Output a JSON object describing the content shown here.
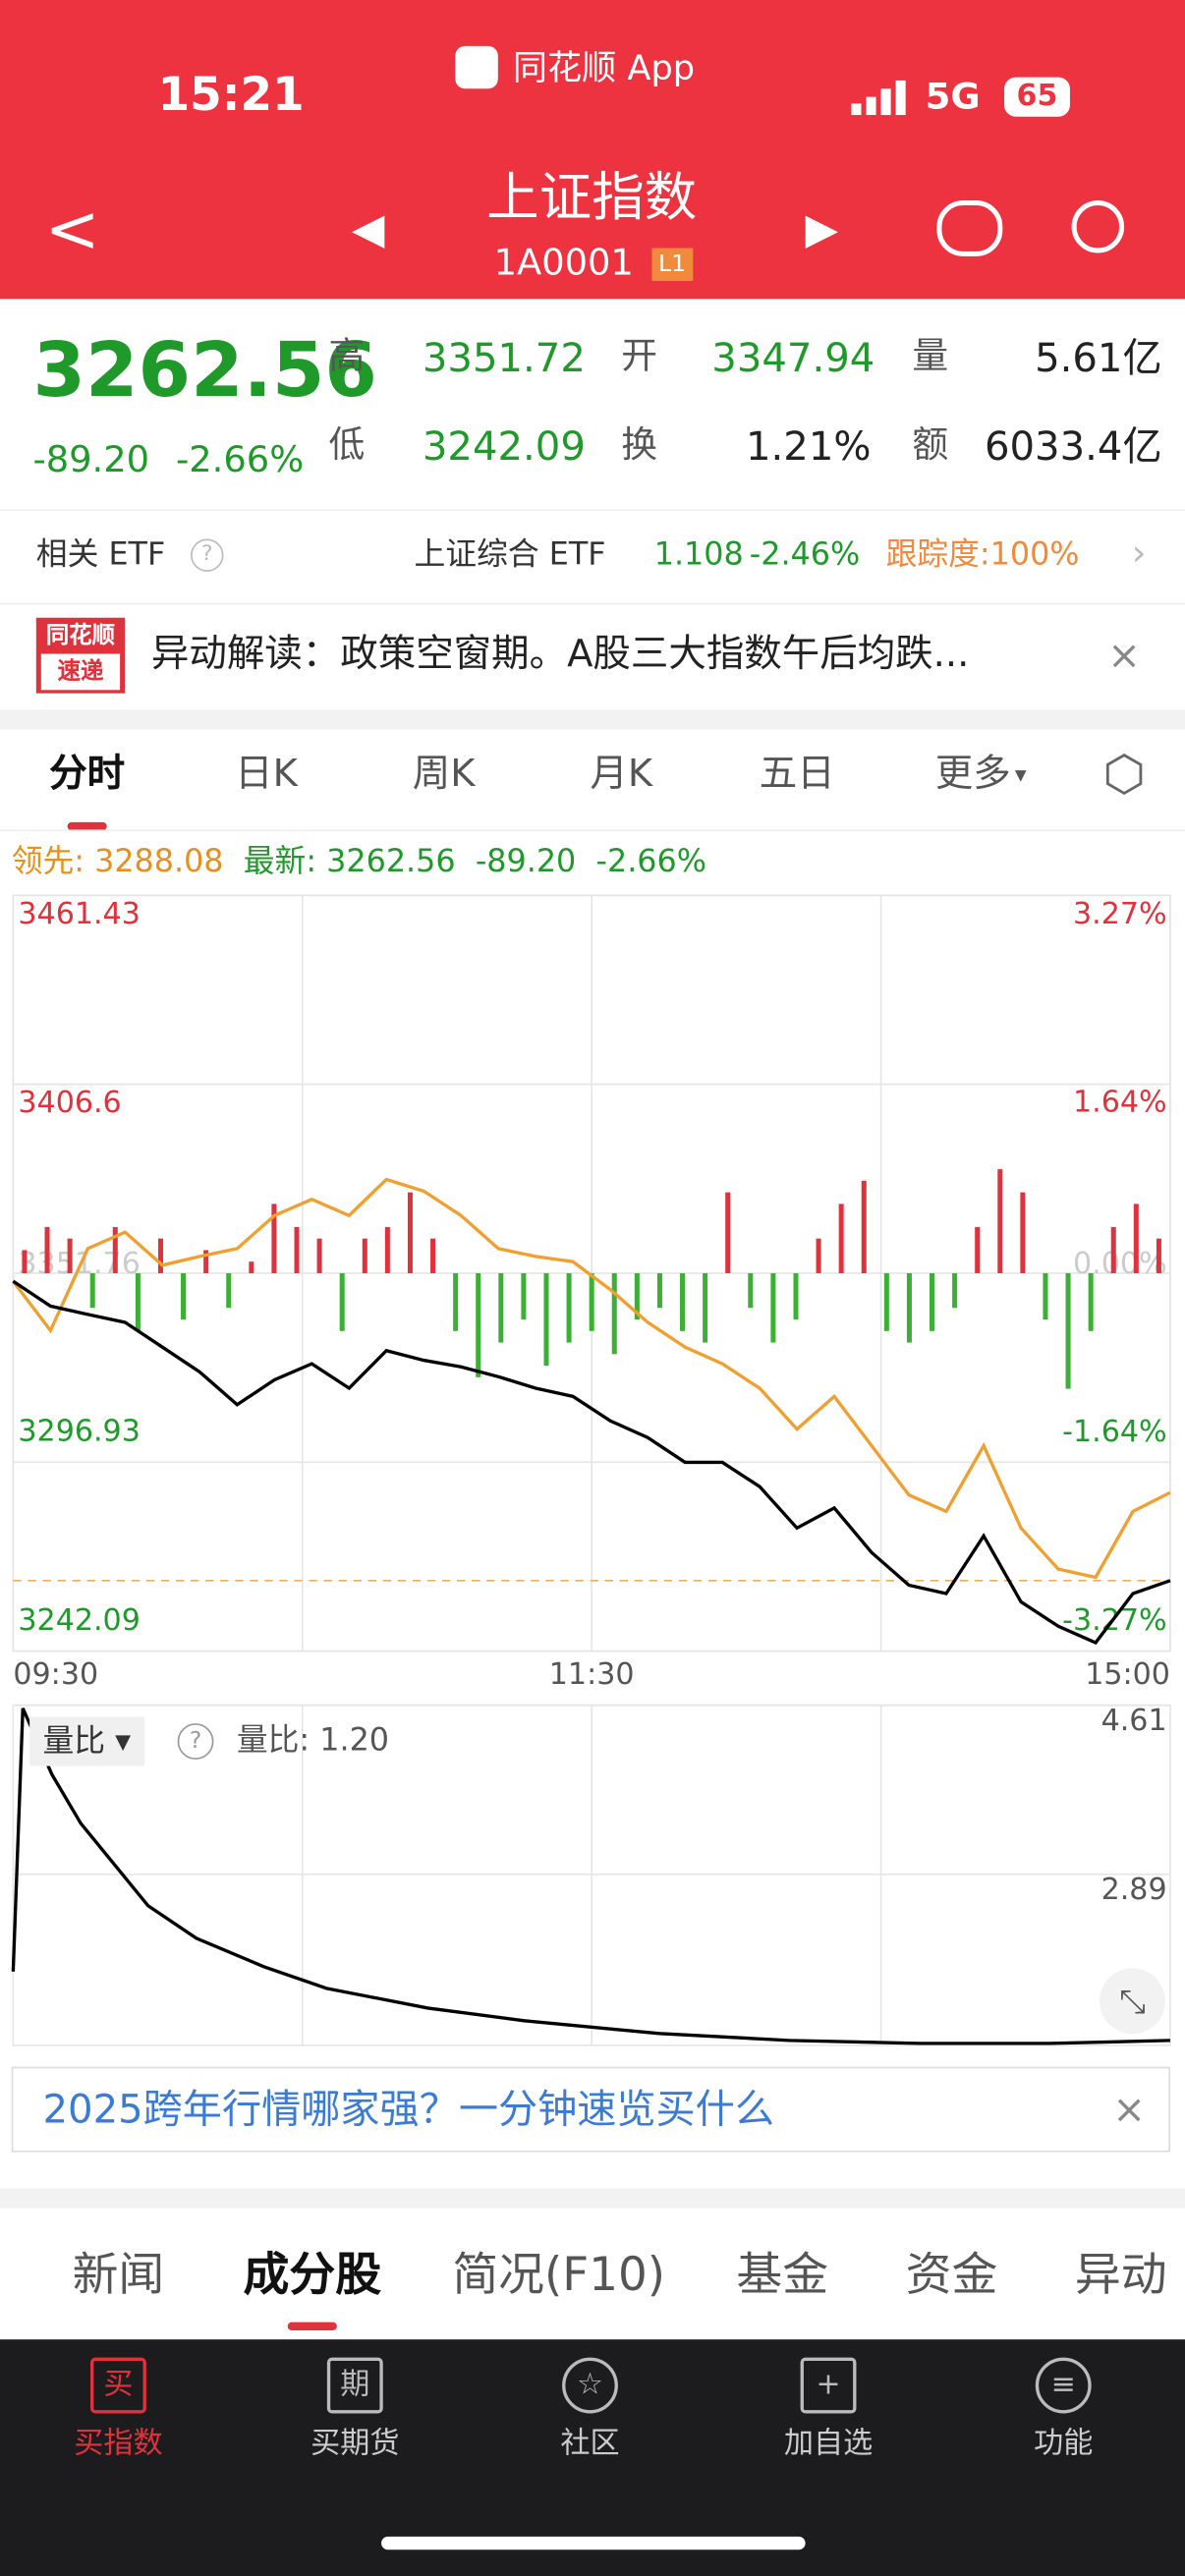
{
  "status": {
    "time": "15:21",
    "app": "同花顺 App",
    "network": "5G",
    "battery": "65"
  },
  "header": {
    "title": "上证指数",
    "code": "1A0001",
    "badge": "L1"
  },
  "quote": {
    "price": "3262.56",
    "change": "-89.20",
    "pct": "-2.66%",
    "fields": [
      {
        "label": "高",
        "value": "3351.72"
      },
      {
        "label": "开",
        "value": "3347.94"
      },
      {
        "label": "量",
        "value": "5.61亿"
      },
      {
        "label": "低",
        "value": "3242.09"
      },
      {
        "label": "换",
        "value": "1.21%"
      },
      {
        "label": "额",
        "value": "6033.4亿"
      }
    ]
  },
  "etf": {
    "label": "相关 ETF",
    "name": "上证综合 ETF",
    "price": "1.108",
    "pct": "-2.46%",
    "track": "跟踪度:100%"
  },
  "news": {
    "badge_top": "同花顺",
    "badge_bottom": "速递",
    "text": "异动解读：政策空窗期。A股三大指数午后均跌..."
  },
  "tabs": [
    "分时",
    "日K",
    "周K",
    "月K",
    "五日",
    "更多"
  ],
  "chart_data": [
    {
      "type": "line",
      "lead_label": "领先:",
      "lead": 3288.08,
      "latest_label": "最新:",
      "latest": 3262.56,
      "change": "-89.20",
      "pct": "-2.66%",
      "xlim": [
        0,
        240
      ],
      "xticks": [
        {
          "value": 0,
          "label": "09:30"
        },
        {
          "value": 120,
          "label": "11:30"
        },
        {
          "value": 240,
          "label": "15:00"
        }
      ],
      "ylim": [
        3242.09,
        3461.43
      ],
      "yticks": [
        3461.43,
        3406.6,
        3351.76,
        3296.93,
        3242.09
      ],
      "y2lim": [
        -3.27,
        3.27
      ],
      "y2ticks": [
        {
          "value": 3.27,
          "label": "3.27%"
        },
        {
          "value": 1.64,
          "label": "1.64%"
        },
        {
          "value": 0,
          "label": "0.00%"
        },
        {
          "value": -1.64,
          "label": "-1.64%"
        },
        {
          "value": -3.27,
          "label": "-3.27%"
        }
      ],
      "series": [
        {
          "color": "#f0a030",
          "values": [
            3349.4,
            3335.1,
            3358.9,
            3363.7,
            3354.1,
            3356.6,
            3358.9,
            3368.5,
            3373.2,
            3368.5,
            3379.0,
            3375.6,
            3368.5,
            3358.9,
            3356.6,
            3355.1,
            3347.0,
            3337.5,
            3330.3,
            3325.5,
            3318.4,
            3306.5,
            3316.0,
            3301.7,
            3287.4,
            3282.6,
            3301.7,
            3277.8,
            3265.9,
            3263.5,
            3282.6,
            3288.08
          ]
        },
        {
          "color": "#000000",
          "values": [
            3349.4,
            3342.2,
            3339.8,
            3337.5,
            3330.3,
            3323.1,
            3313.6,
            3320.8,
            3325.5,
            3318.4,
            3329.3,
            3326.5,
            3324.6,
            3321.7,
            3318.4,
            3316.0,
            3308.9,
            3304.1,
            3296.9,
            3296.9,
            3289.8,
            3277.8,
            3283.6,
            3270.7,
            3261.2,
            3258.8,
            3275.5,
            3256.4,
            3249.3,
            3244.5,
            3258.8,
            3262.56
          ]
        }
      ],
      "bars": {
        "axis": "y2",
        "up_color": "#e0323c",
        "down_color": "#3cb034",
        "values": [
          0.2,
          0.4,
          0.3,
          -0.3,
          0.4,
          -0.5,
          0.3,
          -0.4,
          0.2,
          -0.3,
          0.1,
          0.6,
          0.4,
          0.3,
          -0.5,
          0.3,
          0.4,
          0.7,
          0.3,
          -0.5,
          -0.9,
          -0.6,
          -0.4,
          -0.8,
          -0.6,
          -0.5,
          -0.7,
          -0.4,
          -0.3,
          -0.5,
          -0.6,
          0.7,
          -0.3,
          -0.6,
          -0.4,
          0.3,
          0.6,
          0.8,
          -0.5,
          -0.6,
          -0.5,
          -0.3,
          0.4,
          0.9,
          0.7,
          -0.4,
          -1.0,
          -0.5,
          0.4,
          0.6,
          0.3
        ]
      }
    },
    {
      "type": "line",
      "title": "量比",
      "label": "量比:",
      "current": "1.20",
      "color": "#000000",
      "xlim": [
        0,
        240
      ],
      "ylim": [
        1.15,
        4.61
      ],
      "yticks": [
        4.61,
        2.89
      ],
      "x": [
        0,
        2,
        8,
        14,
        21,
        28,
        38,
        52,
        65,
        86,
        106,
        134,
        161,
        188,
        215,
        240
      ],
      "values": [
        1.9,
        4.58,
        3.91,
        3.41,
        2.99,
        2.57,
        2.24,
        1.95,
        1.73,
        1.53,
        1.4,
        1.27,
        1.2,
        1.17,
        1.17,
        1.2
      ]
    }
  ],
  "ad": {
    "text": "2025跨年行情哪家强？一分钟速览买什么"
  },
  "sections": {
    "items": [
      "新闻",
      "成分股",
      "简况(F10)",
      "基金",
      "资金",
      "异动"
    ],
    "active": 1
  },
  "nav": {
    "icons": [
      "买",
      "期"
    ],
    "items": [
      "买指数",
      "买期货",
      "社区",
      "加自选",
      "功能"
    ]
  }
}
